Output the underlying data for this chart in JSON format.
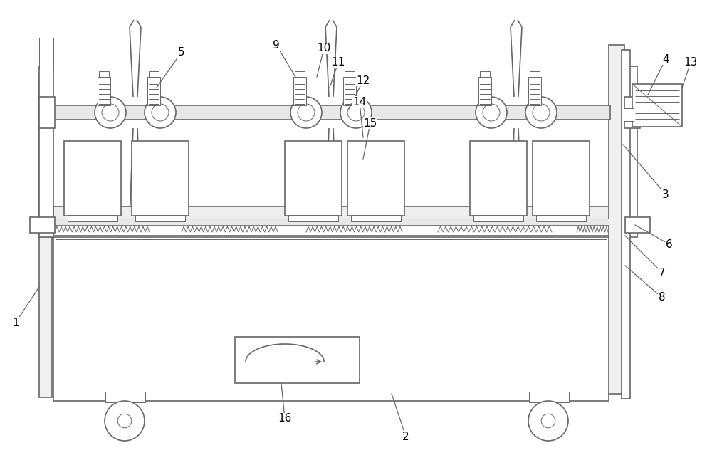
{
  "line_color": "#666666",
  "lw": 1.2,
  "tlw": 0.7,
  "fig_width": 10.0,
  "fig_height": 6.53
}
